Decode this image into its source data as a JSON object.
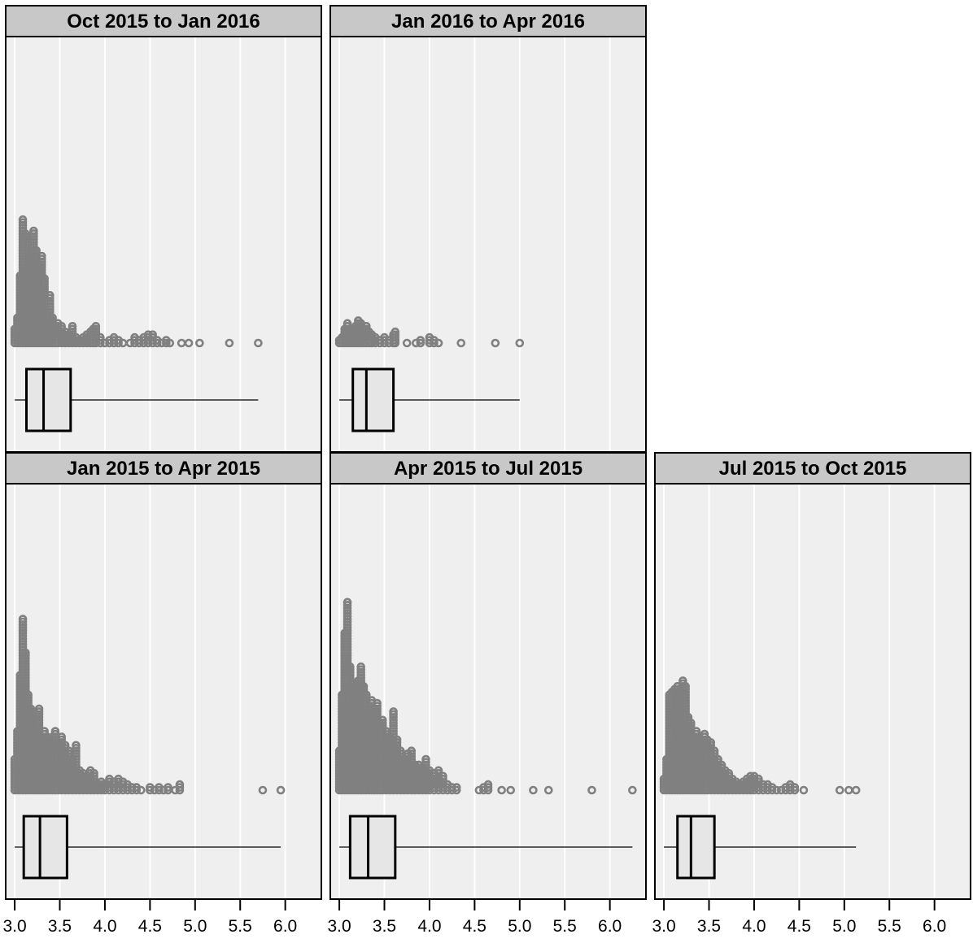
{
  "chart_data": {
    "type": "dotplot-boxplot",
    "layout": "trellis 3 columns x 2 rows, shared x axis",
    "xlim": [
      2.9,
      6.4
    ],
    "x_ticks": [
      "3.0",
      "3.5",
      "4.0",
      "4.5",
      "5.0",
      "5.5",
      "6.0"
    ],
    "grid": true,
    "colors": {
      "panel_bg": "#efefef",
      "strip_bg": "#c8c8c8",
      "points": "#808080",
      "box_fill": "#e6e6e6",
      "frame": "#000000"
    },
    "panels": [
      {
        "title": "Oct 2015 to Jan 2016",
        "box": {
          "min": 3.0,
          "q1": 3.13,
          "median": 3.32,
          "q3": 3.62,
          "max": 5.7
        },
        "stacks": [
          [
            3.0,
            6
          ],
          [
            3.03,
            10
          ],
          [
            3.06,
            25
          ],
          [
            3.09,
            45
          ],
          [
            3.12,
            40
          ],
          [
            3.15,
            30
          ],
          [
            3.18,
            33
          ],
          [
            3.21,
            41
          ],
          [
            3.24,
            34
          ],
          [
            3.27,
            28
          ],
          [
            3.3,
            32
          ],
          [
            3.33,
            24
          ],
          [
            3.36,
            12
          ],
          [
            3.39,
            18
          ],
          [
            3.42,
            10
          ],
          [
            3.45,
            7
          ],
          [
            3.48,
            8
          ],
          [
            3.52,
            7
          ],
          [
            3.56,
            5
          ],
          [
            3.6,
            4
          ],
          [
            3.64,
            7
          ],
          [
            3.68,
            3
          ],
          [
            3.72,
            2
          ],
          [
            3.76,
            3
          ],
          [
            3.8,
            4
          ],
          [
            3.84,
            5
          ],
          [
            3.87,
            6
          ],
          [
            3.9,
            7
          ],
          [
            3.95,
            3
          ],
          [
            4.0,
            1
          ],
          [
            4.05,
            2
          ],
          [
            4.1,
            3
          ],
          [
            4.15,
            2
          ],
          [
            4.2,
            1
          ],
          [
            4.28,
            1
          ],
          [
            4.33,
            3
          ],
          [
            4.38,
            2
          ],
          [
            4.43,
            3
          ],
          [
            4.48,
            4
          ],
          [
            4.53,
            4
          ],
          [
            4.58,
            2
          ],
          [
            4.63,
            1
          ],
          [
            4.68,
            2
          ],
          [
            4.72,
            1
          ],
          [
            4.85,
            1
          ],
          [
            4.93,
            1
          ],
          [
            5.05,
            1
          ],
          [
            5.38,
            1
          ],
          [
            5.7,
            1
          ]
        ]
      },
      {
        "title": "Jan 2016 to Apr 2016",
        "box": {
          "min": 3.0,
          "q1": 3.15,
          "median": 3.3,
          "q3": 3.6,
          "max": 5.0
        },
        "stacks": [
          [
            3.0,
            2
          ],
          [
            3.03,
            3
          ],
          [
            3.06,
            6
          ],
          [
            3.09,
            8
          ],
          [
            3.12,
            6
          ],
          [
            3.15,
            5
          ],
          [
            3.18,
            7
          ],
          [
            3.21,
            9
          ],
          [
            3.24,
            8
          ],
          [
            3.27,
            6
          ],
          [
            3.3,
            7
          ],
          [
            3.33,
            5
          ],
          [
            3.36,
            4
          ],
          [
            3.4,
            3
          ],
          [
            3.45,
            2
          ],
          [
            3.5,
            3
          ],
          [
            3.55,
            2
          ],
          [
            3.6,
            4
          ],
          [
            3.62,
            5
          ],
          [
            3.75,
            1
          ],
          [
            3.85,
            1
          ],
          [
            3.9,
            2
          ],
          [
            4.0,
            3
          ],
          [
            4.05,
            2
          ],
          [
            4.1,
            1
          ],
          [
            4.35,
            1
          ],
          [
            4.73,
            1
          ],
          [
            5.0,
            1
          ]
        ]
      },
      {
        "title": "Jan 2015 to Apr 2015",
        "box": {
          "min": 3.0,
          "q1": 3.1,
          "median": 3.28,
          "q3": 3.58,
          "max": 5.95
        },
        "stacks": [
          [
            3.0,
            12
          ],
          [
            3.03,
            22
          ],
          [
            3.06,
            42
          ],
          [
            3.09,
            62
          ],
          [
            3.12,
            50
          ],
          [
            3.15,
            35
          ],
          [
            3.18,
            30
          ],
          [
            3.21,
            22
          ],
          [
            3.24,
            28
          ],
          [
            3.27,
            30
          ],
          [
            3.3,
            20
          ],
          [
            3.33,
            22
          ],
          [
            3.36,
            20
          ],
          [
            3.39,
            16
          ],
          [
            3.42,
            20
          ],
          [
            3.45,
            22
          ],
          [
            3.48,
            18
          ],
          [
            3.52,
            20
          ],
          [
            3.56,
            17
          ],
          [
            3.6,
            15
          ],
          [
            3.64,
            12
          ],
          [
            3.68,
            17
          ],
          [
            3.72,
            8
          ],
          [
            3.76,
            7
          ],
          [
            3.8,
            6
          ],
          [
            3.84,
            8
          ],
          [
            3.88,
            7
          ],
          [
            3.92,
            3
          ],
          [
            3.96,
            4
          ],
          [
            4.0,
            3
          ],
          [
            4.05,
            5
          ],
          [
            4.1,
            4
          ],
          [
            4.15,
            5
          ],
          [
            4.2,
            4
          ],
          [
            4.25,
            3
          ],
          [
            4.3,
            2
          ],
          [
            4.35,
            2
          ],
          [
            4.4,
            1
          ],
          [
            4.5,
            2
          ],
          [
            4.55,
            1
          ],
          [
            4.6,
            2
          ],
          [
            4.65,
            1
          ],
          [
            4.7,
            2
          ],
          [
            4.78,
            1
          ],
          [
            4.83,
            3
          ],
          [
            5.75,
            1
          ],
          [
            5.95,
            1
          ]
        ]
      },
      {
        "title": "Apr 2015 to Jul 2015",
        "box": {
          "min": 3.0,
          "q1": 3.12,
          "median": 3.32,
          "q3": 3.62,
          "max": 6.25
        },
        "stacks": [
          [
            3.0,
            15
          ],
          [
            3.03,
            35
          ],
          [
            3.06,
            57
          ],
          [
            3.09,
            68
          ],
          [
            3.12,
            45
          ],
          [
            3.15,
            30
          ],
          [
            3.18,
            38
          ],
          [
            3.21,
            40
          ],
          [
            3.24,
            45
          ],
          [
            3.27,
            38
          ],
          [
            3.3,
            35
          ],
          [
            3.33,
            28
          ],
          [
            3.36,
            33
          ],
          [
            3.39,
            30
          ],
          [
            3.42,
            32
          ],
          [
            3.45,
            25
          ],
          [
            3.48,
            26
          ],
          [
            3.52,
            22
          ],
          [
            3.56,
            20
          ],
          [
            3.6,
            29
          ],
          [
            3.64,
            19
          ],
          [
            3.68,
            15
          ],
          [
            3.72,
            12
          ],
          [
            3.76,
            14
          ],
          [
            3.8,
            15
          ],
          [
            3.84,
            10
          ],
          [
            3.88,
            10
          ],
          [
            3.92,
            9
          ],
          [
            3.96,
            12
          ],
          [
            4.0,
            8
          ],
          [
            4.05,
            7
          ],
          [
            4.1,
            8
          ],
          [
            4.15,
            6
          ],
          [
            4.2,
            3
          ],
          [
            4.25,
            2
          ],
          [
            4.3,
            2
          ],
          [
            4.55,
            1
          ],
          [
            4.6,
            2
          ],
          [
            4.65,
            3
          ],
          [
            4.8,
            1
          ],
          [
            4.9,
            1
          ],
          [
            5.15,
            1
          ],
          [
            5.32,
            1
          ],
          [
            5.8,
            1
          ],
          [
            6.25,
            1
          ]
        ]
      },
      {
        "title": "Jul 2015 to Oct 2015",
        "box": {
          "min": 3.0,
          "q1": 3.15,
          "median": 3.3,
          "q3": 3.56,
          "max": 5.13
        },
        "stacks": [
          [
            3.0,
            5
          ],
          [
            3.03,
            12
          ],
          [
            3.06,
            35
          ],
          [
            3.09,
            36
          ],
          [
            3.12,
            37
          ],
          [
            3.15,
            38
          ],
          [
            3.18,
            36
          ],
          [
            3.21,
            40
          ],
          [
            3.24,
            38
          ],
          [
            3.27,
            27
          ],
          [
            3.3,
            25
          ],
          [
            3.33,
            20
          ],
          [
            3.36,
            22
          ],
          [
            3.39,
            20
          ],
          [
            3.42,
            18
          ],
          [
            3.45,
            21
          ],
          [
            3.48,
            19
          ],
          [
            3.52,
            18
          ],
          [
            3.56,
            15
          ],
          [
            3.6,
            12
          ],
          [
            3.64,
            10
          ],
          [
            3.68,
            8
          ],
          [
            3.72,
            7
          ],
          [
            3.76,
            5
          ],
          [
            3.8,
            4
          ],
          [
            3.84,
            3
          ],
          [
            3.88,
            4
          ],
          [
            3.92,
            5
          ],
          [
            3.96,
            6
          ],
          [
            4.0,
            6
          ],
          [
            4.05,
            5
          ],
          [
            4.1,
            3
          ],
          [
            4.15,
            3
          ],
          [
            4.2,
            2
          ],
          [
            4.25,
            1
          ],
          [
            4.3,
            1
          ],
          [
            4.35,
            2
          ],
          [
            4.4,
            3
          ],
          [
            4.45,
            2
          ],
          [
            4.55,
            1
          ],
          [
            4.95,
            1
          ],
          [
            5.05,
            1
          ],
          [
            5.13,
            1
          ]
        ]
      }
    ]
  }
}
